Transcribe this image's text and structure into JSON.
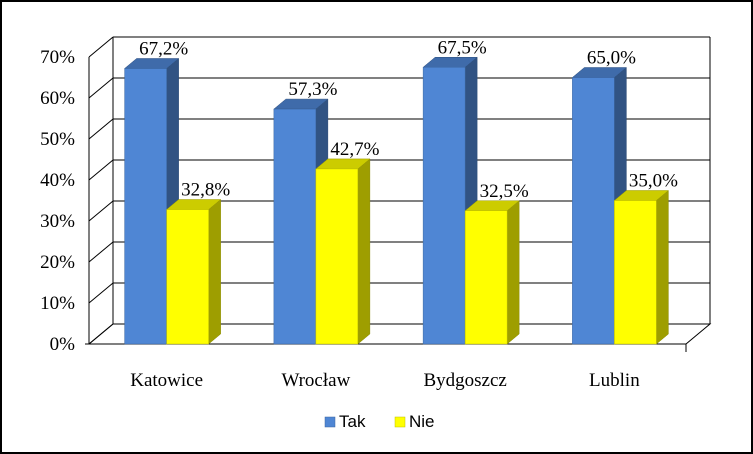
{
  "chart_data": {
    "type": "bar",
    "style": "3d-clustered-column",
    "categories": [
      "Katowice",
      "Wrocław",
      "Bydgoszcz",
      "Lublin"
    ],
    "series": [
      {
        "name": "Tak",
        "values": [
          67.2,
          57.3,
          67.5,
          65.0
        ],
        "labels": [
          "67,2%",
          "57,3%",
          "67,5%",
          "65,0%"
        ],
        "color": "#4F86D4"
      },
      {
        "name": "Nie",
        "values": [
          32.8,
          42.7,
          32.5,
          35.0
        ],
        "labels": [
          "32,8%",
          "42,7%",
          "32,5%",
          "35,0%"
        ],
        "color": "#FFFF00"
      }
    ],
    "y_ticks": [
      "0%",
      "10%",
      "20%",
      "30%",
      "40%",
      "50%",
      "60%",
      "70%"
    ],
    "ylim": [
      0,
      70
    ],
    "grid": true,
    "legend_position": "bottom"
  }
}
